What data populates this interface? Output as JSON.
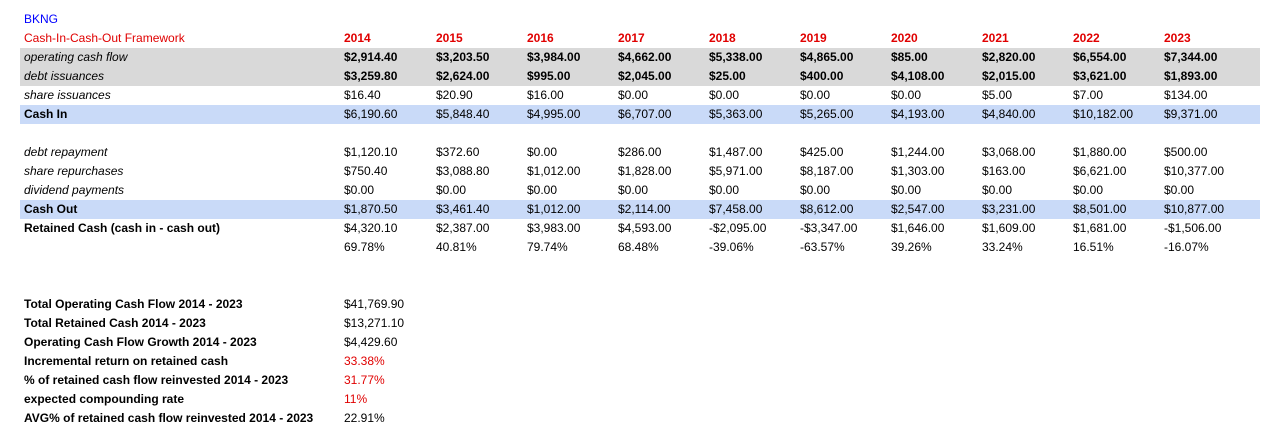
{
  "ticker": "BKNG",
  "framework_title": "Cash-In-Cash-Out Framework",
  "years": [
    "2014",
    "2015",
    "2016",
    "2017",
    "2018",
    "2019",
    "2020",
    "2021",
    "2022",
    "2023"
  ],
  "rows": {
    "operating_cash_flow": {
      "label": "operating cash flow",
      "values": [
        "$2,914.40",
        "$3,203.50",
        "$3,984.00",
        "$4,662.00",
        "$5,338.00",
        "$4,865.00",
        "$85.00",
        "$2,820.00",
        "$6,554.00",
        "$7,344.00"
      ]
    },
    "debt_issuances": {
      "label": "debt issuances",
      "values": [
        "$3,259.80",
        "$2,624.00",
        "$995.00",
        "$2,045.00",
        "$25.00",
        "$400.00",
        "$4,108.00",
        "$2,015.00",
        "$3,621.00",
        "$1,893.00"
      ]
    },
    "share_issuances": {
      "label": "share issuances",
      "values": [
        "$16.40",
        "$20.90",
        "$16.00",
        "$0.00",
        "$0.00",
        "$0.00",
        "$0.00",
        "$5.00",
        "$7.00",
        "$134.00"
      ]
    },
    "cash_in": {
      "label": "Cash In",
      "values": [
        "$6,190.60",
        "$5,848.40",
        "$4,995.00",
        "$6,707.00",
        "$5,363.00",
        "$5,265.00",
        "$4,193.00",
        "$4,840.00",
        "$10,182.00",
        "$9,371.00"
      ]
    },
    "debt_repayment": {
      "label": "debt repayment",
      "values": [
        "$1,120.10",
        "$372.60",
        "$0.00",
        "$286.00",
        "$1,487.00",
        "$425.00",
        "$1,244.00",
        "$3,068.00",
        "$1,880.00",
        "$500.00"
      ]
    },
    "share_repurchases": {
      "label": "share repurchases",
      "values": [
        "$750.40",
        "$3,088.80",
        "$1,012.00",
        "$1,828.00",
        "$5,971.00",
        "$8,187.00",
        "$1,303.00",
        "$163.00",
        "$6,621.00",
        "$10,377.00"
      ]
    },
    "dividend_payments": {
      "label": "dividend payments",
      "values": [
        "$0.00",
        "$0.00",
        "$0.00",
        "$0.00",
        "$0.00",
        "$0.00",
        "$0.00",
        "$0.00",
        "$0.00",
        "$0.00"
      ]
    },
    "cash_out": {
      "label": "Cash Out",
      "values": [
        "$1,870.50",
        "$3,461.40",
        "$1,012.00",
        "$2,114.00",
        "$7,458.00",
        "$8,612.00",
        "$2,547.00",
        "$3,231.00",
        "$8,501.00",
        "$10,877.00"
      ]
    },
    "retained_cash": {
      "label": "Retained Cash (cash in - cash out)",
      "values": [
        "$4,320.10",
        "$2,387.00",
        "$3,983.00",
        "$4,593.00",
        "-$2,095.00",
        "-$3,347.00",
        "$1,646.00",
        "$1,609.00",
        "$1,681.00",
        "-$1,506.00"
      ]
    },
    "retained_pct": {
      "label": "",
      "values": [
        "69.78%",
        "40.81%",
        "79.74%",
        "68.48%",
        "-39.06%",
        "-63.57%",
        "39.26%",
        "33.24%",
        "16.51%",
        "-16.07%"
      ]
    }
  },
  "summary": [
    {
      "label": "Total Operating Cash Flow 2014 - 2023",
      "value": "$41,769.90",
      "red": false
    },
    {
      "label": "Total Retained Cash 2014 - 2023",
      "value": "$13,271.10",
      "red": false
    },
    {
      "label": "Operating Cash Flow Growth 2014 - 2023",
      "value": "$4,429.60",
      "red": false
    },
    {
      "label": "Incremental return on retained cash",
      "value": "33.38%",
      "red": true
    },
    {
      "label": "% of retained cash flow reinvested 2014 - 2023",
      "value": "31.77%",
      "red": true
    },
    {
      "label": "expected compounding rate",
      "value": "11%",
      "red": true
    },
    {
      "label": "AVG% of retained cash flow reinvested 2014 - 2023",
      "value": "22.91%",
      "red": false
    }
  ],
  "colors": {
    "ticker": "#0000ff",
    "header_red": "#e00000",
    "gray_band": "#d9d9d9",
    "blue_band": "#c9daf8"
  }
}
